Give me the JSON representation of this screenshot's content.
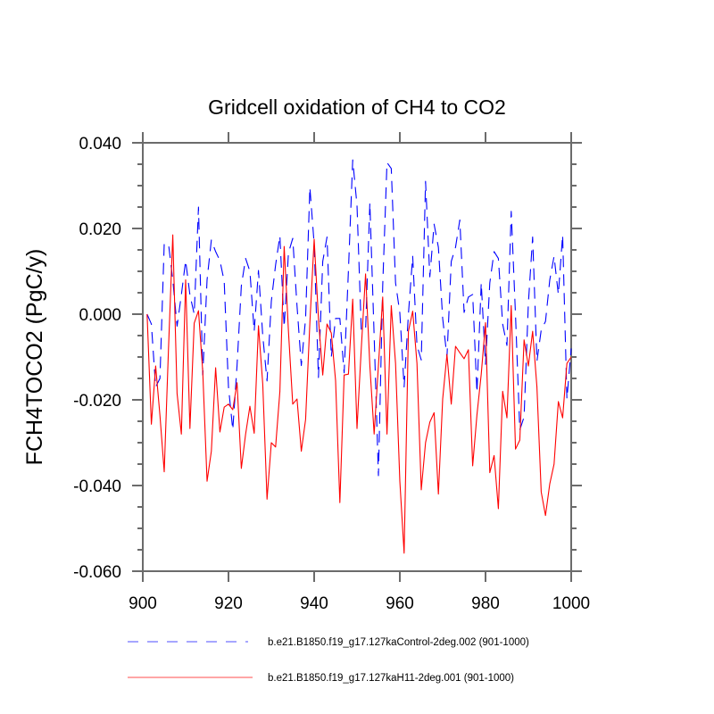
{
  "chart_data": {
    "type": "line",
    "title": "Gridcell oxidation of CH4 to CO2",
    "xlabel": "",
    "ylabel": "FCH4TOCO2  (PgC/y)",
    "xlim": [
      900,
      1000
    ],
    "ylim": [
      -0.06,
      0.04
    ],
    "x_ticks": [
      900,
      920,
      940,
      960,
      980,
      1000
    ],
    "x_tick_labels": [
      "900",
      "920",
      "940",
      "960",
      "980",
      "1000"
    ],
    "y_ticks": [
      0.04,
      0.02,
      0.0,
      -0.02,
      -0.04,
      -0.06
    ],
    "y_tick_labels": [
      "0.040",
      "0.020",
      "0.000",
      "-0.020",
      "-0.040",
      "-0.060"
    ],
    "y_minor_step": 0.005,
    "grid": false,
    "legend_position": "bottom",
    "x_start": 901,
    "series": [
      {
        "name": "b.e21.B1850.f19_g17.127kaControl-2deg.002 (901-1000)",
        "color": "#0000ff",
        "style": "dashed",
        "values": [
          0.0,
          -0.0023,
          -0.017,
          -0.015,
          0.0164,
          0.0164,
          0.008,
          -0.0028,
          0.0045,
          0.0125,
          0.0045,
          0.0,
          0.025,
          -0.0142,
          0.008,
          0.0173,
          0.0146,
          0.0125,
          0.0077,
          -0.017,
          -0.027,
          -0.012,
          0.0066,
          0.013,
          0.01,
          -0.004,
          0.0102,
          -0.005,
          -0.0156,
          0.003,
          0.0115,
          0.0183,
          -0.003,
          0.0143,
          0.0177,
          0.0019,
          -0.012,
          -0.001,
          0.0296,
          0.0164,
          -0.0148,
          0.0123,
          0.018,
          -0.01,
          -0.001,
          -0.001,
          -0.0137,
          0.0102,
          0.036,
          0.0254,
          -0.0037,
          -0.0037,
          0.026,
          -0.005,
          -0.0377,
          0.0066,
          0.0354,
          0.034,
          0.0073,
          0.0003,
          -0.017,
          0.0,
          0.0135,
          -0.0073,
          -0.0107,
          0.031,
          0.0087,
          0.021,
          0.0156,
          -0.001,
          -0.01,
          0.0123,
          0.0156,
          0.022,
          0.0004,
          0.004,
          0.0046,
          -0.0183,
          0.0073,
          -0.0117,
          0.0073,
          0.0146,
          0.013,
          -0.0023,
          -0.0073,
          0.024,
          -0.0002,
          -0.027,
          -0.024,
          0.0025,
          0.018,
          -0.011,
          -0.0037,
          -0.0017,
          0.008,
          0.0135,
          0.0046,
          0.0185,
          -0.0198,
          -0.008
        ]
      },
      {
        "name": "b.e21.B1850.f19_g17.127kaH11-2deg.001 (901-1000)",
        "color": "#ff0000",
        "style": "solid",
        "values": [
          0.0,
          -0.0257,
          -0.0121,
          -0.0236,
          -0.0368,
          -0.008,
          0.0185,
          -0.0185,
          -0.028,
          0.008,
          -0.0267,
          -0.0021,
          0.0008,
          -0.0135,
          -0.039,
          -0.032,
          -0.0125,
          -0.0275,
          -0.0217,
          -0.021,
          -0.0223,
          -0.016,
          -0.036,
          -0.028,
          -0.0215,
          -0.0278,
          -0.0027,
          -0.0163,
          -0.0432,
          -0.03,
          -0.031,
          -0.018,
          0.0158,
          -0.004,
          -0.021,
          -0.0198,
          -0.032,
          -0.0246,
          -0.002,
          0.0175,
          -0.001,
          -0.0142,
          -0.0023,
          -0.0044,
          -0.0155,
          -0.044,
          -0.0142,
          -0.014,
          0.0035,
          -0.0267,
          -0.008,
          0.0094,
          -0.012,
          -0.028,
          -0.012,
          0.004,
          -0.028,
          0.002,
          -0.0115,
          -0.039,
          -0.0558,
          -0.004,
          0.0007,
          -0.0115,
          -0.041,
          -0.03,
          -0.0252,
          -0.023,
          -0.042,
          -0.0198,
          -0.0094,
          -0.021,
          -0.0075,
          -0.009,
          -0.0104,
          -0.0083,
          -0.0354,
          -0.0235,
          -0.014,
          -0.002,
          -0.037,
          -0.033,
          -0.0454,
          -0.018,
          -0.0242,
          0.002,
          -0.0315,
          -0.0294,
          -0.006,
          -0.0121,
          -0.004,
          -0.017,
          -0.0415,
          -0.047,
          -0.0396,
          -0.035,
          -0.0204,
          -0.0242,
          -0.0115,
          -0.01
        ]
      }
    ]
  }
}
